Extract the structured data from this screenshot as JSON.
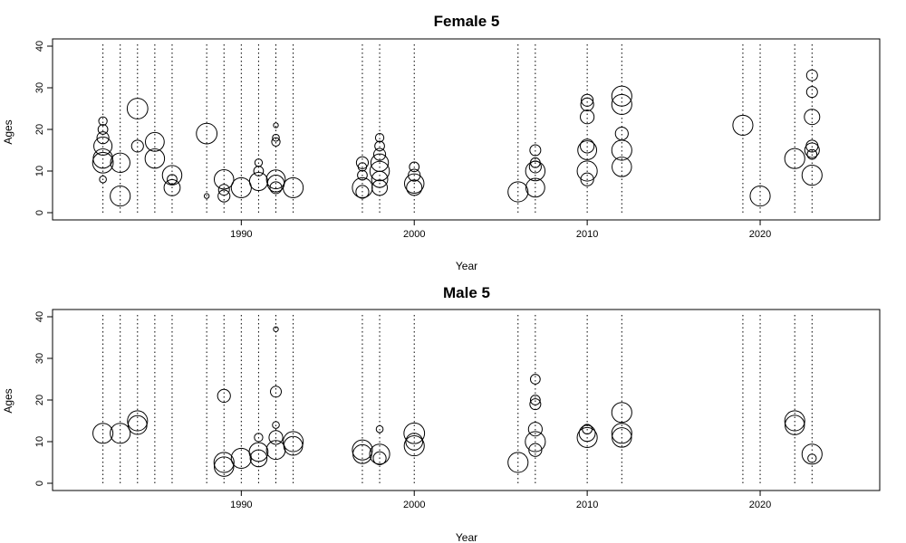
{
  "chart_data": [
    {
      "type": "scatter",
      "title": "Female 5",
      "xlabel": "Year",
      "ylabel": "Ages",
      "xlim": [
        1981,
        2025
      ],
      "ylim": [
        0,
        40
      ],
      "xticks": [
        1990,
        2000,
        2010,
        2020
      ],
      "yticks": [
        0,
        10,
        20,
        30,
        40
      ],
      "sampled_years": [
        1982,
        1983,
        1984,
        1985,
        1986,
        1988,
        1989,
        1990,
        1991,
        1992,
        1993,
        1997,
        1998,
        2000,
        2006,
        2007,
        2010,
        2012,
        2019,
        2020,
        2022,
        2023
      ],
      "points": [
        {
          "x": 1982,
          "y": 12,
          "size": 0.9
        },
        {
          "x": 1982,
          "y": 13,
          "size": 0.8
        },
        {
          "x": 1982,
          "y": 16,
          "size": 0.7
        },
        {
          "x": 1982,
          "y": 18,
          "size": 0.3
        },
        {
          "x": 1982,
          "y": 20,
          "size": 0.2
        },
        {
          "x": 1982,
          "y": 22,
          "size": 0.15
        },
        {
          "x": 1982,
          "y": 8,
          "size": 0.1
        },
        {
          "x": 1983,
          "y": 12,
          "size": 0.8
        },
        {
          "x": 1983,
          "y": 4,
          "size": 0.85
        },
        {
          "x": 1984,
          "y": 25,
          "size": 0.9
        },
        {
          "x": 1984,
          "y": 16,
          "size": 0.3
        },
        {
          "x": 1985,
          "y": 17,
          "size": 0.75
        },
        {
          "x": 1985,
          "y": 13,
          "size": 0.8
        },
        {
          "x": 1986,
          "y": 9,
          "size": 0.8
        },
        {
          "x": 1986,
          "y": 6,
          "size": 0.55
        },
        {
          "x": 1986,
          "y": 8,
          "size": 0.2
        },
        {
          "x": 1988,
          "y": 19,
          "size": 0.9
        },
        {
          "x": 1988,
          "y": 4,
          "size": 0.05
        },
        {
          "x": 1989,
          "y": 8,
          "size": 0.8
        },
        {
          "x": 1989,
          "y": 4,
          "size": 0.3
        },
        {
          "x": 1989,
          "y": 5.5,
          "size": 0.25
        },
        {
          "x": 1990,
          "y": 6,
          "size": 0.85
        },
        {
          "x": 1991,
          "y": 7.5,
          "size": 0.7
        },
        {
          "x": 1991,
          "y": 10,
          "size": 0.2
        },
        {
          "x": 1991,
          "y": 12,
          "size": 0.12
        },
        {
          "x": 1992,
          "y": 8,
          "size": 0.75
        },
        {
          "x": 1992,
          "y": 7,
          "size": 0.6
        },
        {
          "x": 1992,
          "y": 6,
          "size": 0.3
        },
        {
          "x": 1992,
          "y": 17,
          "size": 0.15
        },
        {
          "x": 1992,
          "y": 18,
          "size": 0.1
        },
        {
          "x": 1992,
          "y": 21,
          "size": 0.05
        },
        {
          "x": 1993,
          "y": 6,
          "size": 0.85
        },
        {
          "x": 1997,
          "y": 6,
          "size": 0.85
        },
        {
          "x": 1997,
          "y": 5,
          "size": 0.35
        },
        {
          "x": 1997,
          "y": 9,
          "size": 0.2
        },
        {
          "x": 1997,
          "y": 12,
          "size": 0.3
        },
        {
          "x": 1997,
          "y": 11,
          "size": 0.15
        },
        {
          "x": 1998,
          "y": 10,
          "size": 0.8
        },
        {
          "x": 1998,
          "y": 12,
          "size": 0.65
        },
        {
          "x": 1998,
          "y": 8,
          "size": 0.55
        },
        {
          "x": 1998,
          "y": 6,
          "size": 0.5
        },
        {
          "x": 1998,
          "y": 14,
          "size": 0.3
        },
        {
          "x": 1998,
          "y": 16,
          "size": 0.2
        },
        {
          "x": 1998,
          "y": 18,
          "size": 0.15
        },
        {
          "x": 2000,
          "y": 7,
          "size": 0.8
        },
        {
          "x": 2000,
          "y": 6,
          "size": 0.5
        },
        {
          "x": 2000,
          "y": 9,
          "size": 0.3
        },
        {
          "x": 2000,
          "y": 11,
          "size": 0.2
        },
        {
          "x": 2006,
          "y": 5,
          "size": 0.85
        },
        {
          "x": 2007,
          "y": 10,
          "size": 0.8
        },
        {
          "x": 2007,
          "y": 6,
          "size": 0.75
        },
        {
          "x": 2007,
          "y": 11,
          "size": 0.3
        },
        {
          "x": 2007,
          "y": 12,
          "size": 0.2
        },
        {
          "x": 2007,
          "y": 15,
          "size": 0.25
        },
        {
          "x": 2010,
          "y": 10,
          "size": 0.85
        },
        {
          "x": 2010,
          "y": 15,
          "size": 0.75
        },
        {
          "x": 2010,
          "y": 16,
          "size": 0.4
        },
        {
          "x": 2010,
          "y": 8,
          "size": 0.35
        },
        {
          "x": 2010,
          "y": 23,
          "size": 0.4
        },
        {
          "x": 2010,
          "y": 26,
          "size": 0.35
        },
        {
          "x": 2010,
          "y": 27,
          "size": 0.3
        },
        {
          "x": 2012,
          "y": 28,
          "size": 0.85
        },
        {
          "x": 2012,
          "y": 26,
          "size": 0.85
        },
        {
          "x": 2012,
          "y": 15,
          "size": 0.85
        },
        {
          "x": 2012,
          "y": 11,
          "size": 0.8
        },
        {
          "x": 2012,
          "y": 19,
          "size": 0.35
        },
        {
          "x": 2019,
          "y": 21,
          "size": 0.85
        },
        {
          "x": 2020,
          "y": 4,
          "size": 0.85
        },
        {
          "x": 2022,
          "y": 13,
          "size": 0.85
        },
        {
          "x": 2023,
          "y": 9,
          "size": 0.85
        },
        {
          "x": 2023,
          "y": 23,
          "size": 0.5
        },
        {
          "x": 2023,
          "y": 15,
          "size": 0.45
        },
        {
          "x": 2023,
          "y": 16,
          "size": 0.3
        },
        {
          "x": 2023,
          "y": 14,
          "size": 0.2
        },
        {
          "x": 2023,
          "y": 29,
          "size": 0.25
        },
        {
          "x": 2023,
          "y": 33,
          "size": 0.25
        }
      ]
    },
    {
      "type": "scatter",
      "title": "Male 5",
      "xlabel": "Year",
      "ylabel": "Ages",
      "xlim": [
        1981,
        2025
      ],
      "ylim": [
        0,
        40
      ],
      "xticks": [
        1990,
        2000,
        2010,
        2020
      ],
      "yticks": [
        0,
        10,
        20,
        30,
        40
      ],
      "sampled_years": [
        1982,
        1983,
        1984,
        1985,
        1986,
        1988,
        1989,
        1990,
        1991,
        1992,
        1993,
        1997,
        1998,
        2000,
        2006,
        2007,
        2010,
        2012,
        2019,
        2020,
        2022,
        2023
      ],
      "points": [
        {
          "x": 1982,
          "y": 12,
          "size": 0.85
        },
        {
          "x": 1983,
          "y": 12,
          "size": 0.85
        },
        {
          "x": 1984,
          "y": 15,
          "size": 0.85
        },
        {
          "x": 1984,
          "y": 14,
          "size": 0.75
        },
        {
          "x": 1989,
          "y": 5,
          "size": 0.85
        },
        {
          "x": 1989,
          "y": 4,
          "size": 0.8
        },
        {
          "x": 1989,
          "y": 21,
          "size": 0.35
        },
        {
          "x": 1990,
          "y": 6,
          "size": 0.85
        },
        {
          "x": 1991,
          "y": 7.5,
          "size": 0.75
        },
        {
          "x": 1991,
          "y": 6,
          "size": 0.6
        },
        {
          "x": 1991,
          "y": 11,
          "size": 0.15
        },
        {
          "x": 1992,
          "y": 8,
          "size": 0.75
        },
        {
          "x": 1992,
          "y": 11,
          "size": 0.4
        },
        {
          "x": 1992,
          "y": 22,
          "size": 0.25
        },
        {
          "x": 1992,
          "y": 14,
          "size": 0.1
        },
        {
          "x": 1992,
          "y": 37,
          "size": 0.05
        },
        {
          "x": 1993,
          "y": 10,
          "size": 0.85
        },
        {
          "x": 1993,
          "y": 9,
          "size": 0.75
        },
        {
          "x": 1997,
          "y": 8,
          "size": 0.85
        },
        {
          "x": 1997,
          "y": 7,
          "size": 0.75
        },
        {
          "x": 1998,
          "y": 7,
          "size": 0.85
        },
        {
          "x": 1998,
          "y": 6,
          "size": 0.35
        },
        {
          "x": 1998,
          "y": 13,
          "size": 0.1
        },
        {
          "x": 2000,
          "y": 12,
          "size": 0.9
        },
        {
          "x": 2000,
          "y": 9,
          "size": 0.85
        },
        {
          "x": 2000,
          "y": 10,
          "size": 0.6
        },
        {
          "x": 2006,
          "y": 5,
          "size": 0.85
        },
        {
          "x": 2007,
          "y": 10,
          "size": 0.85
        },
        {
          "x": 2007,
          "y": 13,
          "size": 0.4
        },
        {
          "x": 2007,
          "y": 8,
          "size": 0.35
        },
        {
          "x": 2007,
          "y": 19,
          "size": 0.25
        },
        {
          "x": 2007,
          "y": 20,
          "size": 0.2
        },
        {
          "x": 2007,
          "y": 25,
          "size": 0.2
        },
        {
          "x": 2010,
          "y": 11,
          "size": 0.85
        },
        {
          "x": 2010,
          "y": 12,
          "size": 0.55
        },
        {
          "x": 2010,
          "y": 13,
          "size": 0.2
        },
        {
          "x": 2012,
          "y": 17,
          "size": 0.85
        },
        {
          "x": 2012,
          "y": 12,
          "size": 0.85
        },
        {
          "x": 2012,
          "y": 11,
          "size": 0.8
        },
        {
          "x": 2022,
          "y": 15,
          "size": 0.85
        },
        {
          "x": 2022,
          "y": 14,
          "size": 0.8
        },
        {
          "x": 2023,
          "y": 7,
          "size": 0.85
        },
        {
          "x": 2023,
          "y": 6,
          "size": 0.15
        }
      ]
    }
  ]
}
